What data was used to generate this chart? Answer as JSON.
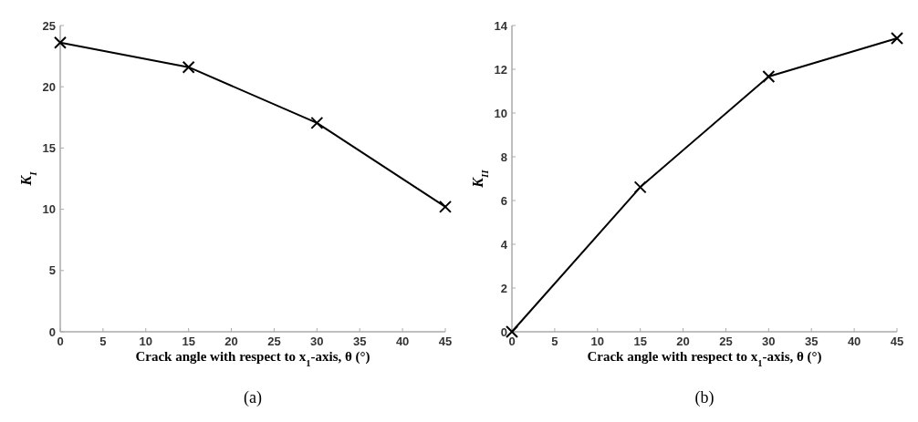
{
  "chart_data": [
    {
      "type": "line",
      "x": [
        0,
        15,
        30,
        45
      ],
      "series": [
        {
          "color": "#000000",
          "values": [
            23.6,
            21.6,
            17.05,
            10.2
          ]
        }
      ],
      "xlim": [
        0,
        45
      ],
      "xticks": [
        0,
        5,
        10,
        15,
        20,
        25,
        30,
        35,
        40,
        45
      ],
      "ylim": [
        0,
        25
      ],
      "yticks": [
        0,
        5,
        10,
        15,
        20,
        25
      ],
      "xlabel": "Crack angle with respect to x$_{1}$-axis, θ (°)",
      "ylabel": "K$_{I}$",
      "marker": "cross",
      "annotations": [
        "(a)"
      ]
    },
    {
      "type": "line",
      "x": [
        0,
        15,
        30,
        45
      ],
      "series": [
        {
          "color": "#000000",
          "values": [
            0,
            6.61,
            11.67,
            13.42
          ]
        }
      ],
      "xlim": [
        0,
        45
      ],
      "xticks": [
        0,
        5,
        10,
        15,
        20,
        25,
        30,
        35,
        40,
        45
      ],
      "ylim": [
        0,
        14
      ],
      "yticks": [
        0,
        2,
        4,
        6,
        8,
        10,
        12,
        14
      ],
      "xlabel": "Crack angle with respect to x$_{1}$-axis, θ (°)",
      "ylabel": "K$_{II}$",
      "marker": "cross",
      "annotations": [
        "(b)"
      ]
    }
  ]
}
